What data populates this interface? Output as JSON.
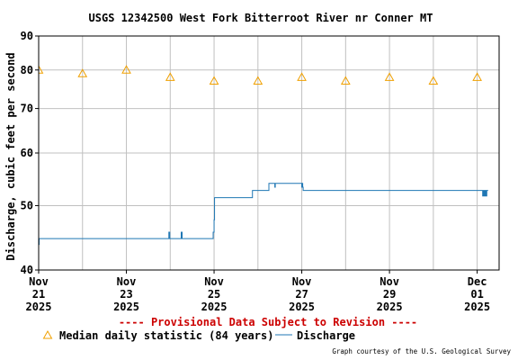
{
  "chart_data": {
    "type": "line",
    "title": "USGS 12342500 West Fork Bitterroot River nr Conner MT",
    "ylabel": "Discharge, cubic feet per second",
    "xlabel": "",
    "y_scale": "log",
    "ylim": [
      40,
      90
    ],
    "y_ticks": [
      40,
      50,
      60,
      70,
      80,
      90
    ],
    "xlim": [
      "2025-11-21 00:00",
      "2025-12-01 12:00"
    ],
    "x_ticks": [
      {
        "at": "2025-11-21 00:00",
        "lines": [
          "Nov",
          "21",
          "2025"
        ]
      },
      {
        "at": "2025-11-23 00:00",
        "lines": [
          "Nov",
          "23",
          "2025"
        ]
      },
      {
        "at": "2025-11-25 00:00",
        "lines": [
          "Nov",
          "25",
          "2025"
        ]
      },
      {
        "at": "2025-11-27 00:00",
        "lines": [
          "Nov",
          "27",
          "2025"
        ]
      },
      {
        "at": "2025-11-29 00:00",
        "lines": [
          "Nov",
          "29",
          "2025"
        ]
      },
      {
        "at": "2025-12-01 00:00",
        "lines": [
          "Dec",
          "01",
          "2025"
        ]
      }
    ],
    "grid": true,
    "series": [
      {
        "name": "Median daily statistic (84 years)",
        "kind": "markers",
        "marker": "triangle-open",
        "color": "#f0a000",
        "points": [
          {
            "x": "2025-11-21 00:00",
            "y": 80
          },
          {
            "x": "2025-11-22 00:00",
            "y": 79
          },
          {
            "x": "2025-11-23 00:00",
            "y": 80
          },
          {
            "x": "2025-11-24 00:00",
            "y": 78
          },
          {
            "x": "2025-11-25 00:00",
            "y": 77
          },
          {
            "x": "2025-11-26 00:00",
            "y": 77
          },
          {
            "x": "2025-11-27 00:00",
            "y": 78
          },
          {
            "x": "2025-11-28 00:00",
            "y": 77
          },
          {
            "x": "2025-11-29 00:00",
            "y": 78
          },
          {
            "x": "2025-11-30 00:00",
            "y": 77
          },
          {
            "x": "2025-12-01 00:00",
            "y": 78
          }
        ]
      },
      {
        "name": "Discharge",
        "kind": "line",
        "color": "#1f77b4",
        "points": [
          {
            "x": "2025-11-20 21:00",
            "y": 43.7
          },
          {
            "x": "2025-11-21 00:15",
            "y": 43.7
          },
          {
            "x": "2025-11-21 00:15",
            "y": 44.6
          },
          {
            "x": "2025-11-23 23:15",
            "y": 44.6
          },
          {
            "x": "2025-11-23 23:15",
            "y": 45.6
          },
          {
            "x": "2025-11-23 23:45",
            "y": 45.6
          },
          {
            "x": "2025-11-23 23:45",
            "y": 44.6
          },
          {
            "x": "2025-11-24 06:00",
            "y": 44.6
          },
          {
            "x": "2025-11-24 06:00",
            "y": 45.6
          },
          {
            "x": "2025-11-24 06:30",
            "y": 45.6
          },
          {
            "x": "2025-11-24 06:30",
            "y": 44.6
          },
          {
            "x": "2025-11-24 23:30",
            "y": 44.6
          },
          {
            "x": "2025-11-24 23:30",
            "y": 45.6
          },
          {
            "x": "2025-11-25 00:00",
            "y": 45.6
          },
          {
            "x": "2025-11-25 00:00",
            "y": 47.6
          },
          {
            "x": "2025-11-25 00:15",
            "y": 47.6
          },
          {
            "x": "2025-11-25 00:15",
            "y": 51.4
          },
          {
            "x": "2025-11-25 21:00",
            "y": 51.4
          },
          {
            "x": "2025-11-25 21:00",
            "y": 52.7
          },
          {
            "x": "2025-11-26 06:00",
            "y": 52.7
          },
          {
            "x": "2025-11-26 06:00",
            "y": 54.0
          },
          {
            "x": "2025-11-26 09:00",
            "y": 54.0
          },
          {
            "x": "2025-11-26 09:00",
            "y": 54.0
          },
          {
            "x": "2025-11-26 09:15",
            "y": 54.0
          },
          {
            "x": "2025-11-26 09:15",
            "y": 53.3
          },
          {
            "x": "2025-11-26 09:30",
            "y": 53.3
          },
          {
            "x": "2025-11-26 09:30",
            "y": 54.0
          },
          {
            "x": "2025-11-27 00:00",
            "y": 54.0
          },
          {
            "x": "2025-11-27 00:00",
            "y": 53.3
          },
          {
            "x": "2025-11-27 00:15",
            "y": 53.3
          },
          {
            "x": "2025-11-27 00:15",
            "y": 54.0
          },
          {
            "x": "2025-11-27 00:30",
            "y": 54.0
          },
          {
            "x": "2025-11-27 00:30",
            "y": 53.3
          },
          {
            "x": "2025-11-27 00:45",
            "y": 53.3
          },
          {
            "x": "2025-11-27 00:45",
            "y": 52.7
          },
          {
            "x": "2025-11-30 23:30",
            "y": 52.7
          },
          {
            "x": "2025-12-01 03:00",
            "y": 52.7
          },
          {
            "x": "2025-12-01 03:00",
            "y": 51.7
          },
          {
            "x": "2025-12-01 03:15",
            "y": 51.7
          },
          {
            "x": "2025-12-01 03:15",
            "y": 52.7
          },
          {
            "x": "2025-12-01 03:30",
            "y": 52.7
          },
          {
            "x": "2025-12-01 03:30",
            "y": 51.7
          },
          {
            "x": "2025-12-01 03:45",
            "y": 51.7
          },
          {
            "x": "2025-12-01 03:45",
            "y": 52.7
          },
          {
            "x": "2025-12-01 04:00",
            "y": 52.7
          },
          {
            "x": "2025-12-01 04:00",
            "y": 51.7
          },
          {
            "x": "2025-12-01 04:15",
            "y": 51.7
          },
          {
            "x": "2025-12-01 04:15",
            "y": 52.7
          },
          {
            "x": "2025-12-01 04:30",
            "y": 52.7
          },
          {
            "x": "2025-12-01 04:30",
            "y": 51.7
          },
          {
            "x": "2025-12-01 04:45",
            "y": 51.7
          },
          {
            "x": "2025-12-01 04:45",
            "y": 52.7
          },
          {
            "x": "2025-12-01 05:00",
            "y": 52.7
          },
          {
            "x": "2025-12-01 05:00",
            "y": 51.7
          },
          {
            "x": "2025-12-01 05:15",
            "y": 51.7
          },
          {
            "x": "2025-12-01 05:15",
            "y": 52.7
          },
          {
            "x": "2025-12-01 06:00",
            "y": 52.7
          }
        ]
      }
    ],
    "provisional_note": "---- Provisional Data Subject to Revision ----",
    "legend": {
      "placement": "bottom",
      "items": [
        {
          "label": "Median daily statistic (84 years)",
          "symbol": "triangle-open",
          "color": "#f0a000"
        },
        {
          "label": "Discharge",
          "symbol": "line",
          "color": "#1f77b4"
        }
      ]
    },
    "credit": "Graph courtesy of the U.S. Geological Survey",
    "colors": {
      "provisional": "#cc0000",
      "grid": "#c0c0c0",
      "frame": "#000000"
    }
  }
}
